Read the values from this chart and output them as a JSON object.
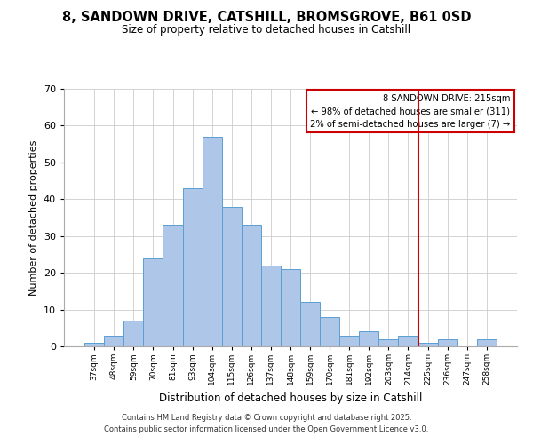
{
  "title": "8, SANDOWN DRIVE, CATSHILL, BROMSGROVE, B61 0SD",
  "subtitle": "Size of property relative to detached houses in Catshill",
  "xlabel": "Distribution of detached houses by size in Catshill",
  "ylabel": "Number of detached properties",
  "bar_labels": [
    "37sqm",
    "48sqm",
    "59sqm",
    "70sqm",
    "81sqm",
    "93sqm",
    "104sqm",
    "115sqm",
    "126sqm",
    "137sqm",
    "148sqm",
    "159sqm",
    "170sqm",
    "181sqm",
    "192sqm",
    "203sqm",
    "214sqm",
    "225sqm",
    "236sqm",
    "247sqm",
    "258sqm"
  ],
  "bar_values": [
    1,
    3,
    7,
    24,
    33,
    43,
    57,
    38,
    33,
    22,
    21,
    12,
    8,
    3,
    4,
    2,
    3,
    1,
    2,
    0,
    2
  ],
  "bar_color": "#aec6e8",
  "bar_edge_color": "#5a9fd4",
  "vline_x_index": 16,
  "vline_color": "#cc0000",
  "ylim": [
    0,
    70
  ],
  "yticks": [
    0,
    10,
    20,
    30,
    40,
    50,
    60,
    70
  ],
  "annotation_title": "8 SANDOWN DRIVE: 215sqm",
  "annotation_line1": "← 98% of detached houses are smaller (311)",
  "annotation_line2": "2% of semi-detached houses are larger (7) →",
  "footer1": "Contains HM Land Registry data © Crown copyright and database right 2025.",
  "footer2": "Contains public sector information licensed under the Open Government Licence v3.0.",
  "background_color": "#ffffff",
  "grid_color": "#cccccc"
}
